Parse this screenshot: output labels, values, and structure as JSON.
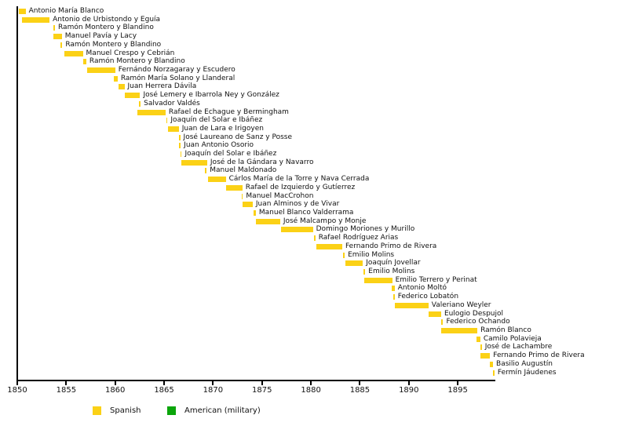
{
  "chart_data": {
    "type": "bar",
    "subtype": "gantt-timeline",
    "title": "",
    "xlabel": "",
    "ylabel": "",
    "xlim": [
      1850,
      1898.75
    ],
    "ticks": [
      1850,
      1855,
      1860,
      1865,
      1870,
      1875,
      1880,
      1885,
      1890,
      1895
    ],
    "grid": false,
    "legend_position": "bottom",
    "colors": {
      "spanish": "#FBD116",
      "american": "#0BA50B",
      "axis": "#000000",
      "text": "#111111"
    },
    "legend": [
      {
        "label": "Spanish",
        "color_key": "spanish"
      },
      {
        "label": "American (military)",
        "color_key": "american"
      }
    ],
    "bars": [
      {
        "name": "Antonio María Blanco",
        "start": 1850.15,
        "end": 1850.85,
        "group": "spanish"
      },
      {
        "name": "Antonio de Urbistondo y Eguía",
        "start": 1850.45,
        "end": 1853.3,
        "group": "spanish"
      },
      {
        "name": "Ramón Montero y Blandino",
        "start": 1853.65,
        "end": 1853.85,
        "group": "spanish"
      },
      {
        "name": "Manuel Pavía y Lacy",
        "start": 1853.7,
        "end": 1854.55,
        "group": "spanish"
      },
      {
        "name": "Ramón Montero y Blandino",
        "start": 1854.45,
        "end": 1854.6,
        "group": "spanish"
      },
      {
        "name": "Manuel Crespo y Cebrián",
        "start": 1854.85,
        "end": 1856.7,
        "group": "spanish"
      },
      {
        "name": "Ramón Montero y Blandino",
        "start": 1856.75,
        "end": 1857.05,
        "group": "spanish"
      },
      {
        "name": "Fernándo Norzagaray y Escudero",
        "start": 1857.1,
        "end": 1860.0,
        "group": "spanish"
      },
      {
        "name": "Ramón María Solano y Llanderal",
        "start": 1859.9,
        "end": 1860.25,
        "group": "spanish"
      },
      {
        "name": "Juan Herrera Dávila",
        "start": 1860.35,
        "end": 1860.95,
        "group": "spanish"
      },
      {
        "name": "José Lemery e Ibarrola Ney y González",
        "start": 1860.95,
        "end": 1862.55,
        "group": "spanish"
      },
      {
        "name": "Salvador Valdés",
        "start": 1862.45,
        "end": 1862.6,
        "group": "spanish"
      },
      {
        "name": "Rafael de Echague y Bermingham",
        "start": 1862.3,
        "end": 1865.15,
        "group": "spanish"
      },
      {
        "name": "Joaquín del Solar e Ibáñez",
        "start": 1865.2,
        "end": 1865.35,
        "group": "spanish"
      },
      {
        "name": "Juan de Lara e Irigoyen",
        "start": 1865.4,
        "end": 1866.5,
        "group": "spanish"
      },
      {
        "name": "José Laureano de Sanz y Posse",
        "start": 1866.5,
        "end": 1866.6,
        "group": "spanish"
      },
      {
        "name": "Juan Antonio Osorio",
        "start": 1866.55,
        "end": 1866.65,
        "group": "spanish"
      },
      {
        "name": "Joaquín del Solar e Ibáñez",
        "start": 1866.65,
        "end": 1866.8,
        "group": "spanish"
      },
      {
        "name": "José de la Gándara y Navarro",
        "start": 1866.8,
        "end": 1869.4,
        "group": "spanish"
      },
      {
        "name": "Manuel Maldonado",
        "start": 1869.15,
        "end": 1869.35,
        "group": "spanish"
      },
      {
        "name": "Cárlos María de la Torre y Nava Cerrada",
        "start": 1869.45,
        "end": 1871.3,
        "group": "spanish"
      },
      {
        "name": "Rafael de Izquierdo y Gutíerrez",
        "start": 1871.3,
        "end": 1873.0,
        "group": "spanish"
      },
      {
        "name": "Manuel MacCrohon",
        "start": 1872.9,
        "end": 1873.05,
        "group": "spanish"
      },
      {
        "name": "Juan Alminos y de Vivar",
        "start": 1873.05,
        "end": 1874.05,
        "group": "spanish"
      },
      {
        "name": "Manuel Blanco Valderrama",
        "start": 1874.1,
        "end": 1874.37,
        "group": "spanish"
      },
      {
        "name": "José Malcampo y Monje",
        "start": 1874.4,
        "end": 1876.85,
        "group": "spanish"
      },
      {
        "name": "Domingo Moriones y Murillo",
        "start": 1876.95,
        "end": 1880.2,
        "group": "spanish"
      },
      {
        "name": "Rafael Rodríguez Arias",
        "start": 1880.3,
        "end": 1880.45,
        "group": "spanish"
      },
      {
        "name": "Fernando Primo de Rivera",
        "start": 1880.55,
        "end": 1883.2,
        "group": "spanish"
      },
      {
        "name": "Emilio Molins",
        "start": 1883.3,
        "end": 1883.45,
        "group": "spanish"
      },
      {
        "name": "Joaquín Jovellar",
        "start": 1883.55,
        "end": 1885.3,
        "group": "spanish"
      },
      {
        "name": "Emilio Molins",
        "start": 1885.4,
        "end": 1885.55,
        "group": "spanish"
      },
      {
        "name": "Emilio Terrero y Perinat",
        "start": 1885.45,
        "end": 1888.3,
        "group": "spanish"
      },
      {
        "name": "Antonio Moltó",
        "start": 1888.25,
        "end": 1888.55,
        "group": "spanish"
      },
      {
        "name": "Federico Lobatón",
        "start": 1888.4,
        "end": 1888.55,
        "group": "spanish"
      },
      {
        "name": "Valeriano Weyler",
        "start": 1888.55,
        "end": 1892.0,
        "group": "spanish"
      },
      {
        "name": "Eulogio Despujol",
        "start": 1892.0,
        "end": 1893.3,
        "group": "spanish"
      },
      {
        "name": "Federico Ochando",
        "start": 1893.3,
        "end": 1893.5,
        "group": "spanish"
      },
      {
        "name": "Ramón Blanco",
        "start": 1893.3,
        "end": 1897.0,
        "group": "spanish"
      },
      {
        "name": "Camilo Polavieja",
        "start": 1896.95,
        "end": 1897.3,
        "group": "spanish"
      },
      {
        "name": "José de Lachambre",
        "start": 1897.3,
        "end": 1897.45,
        "group": "spanish"
      },
      {
        "name": "Fernando Primo de Rivera",
        "start": 1897.3,
        "end": 1898.3,
        "group": "spanish"
      },
      {
        "name": "Basilio Augustín",
        "start": 1898.3,
        "end": 1898.6,
        "group": "spanish"
      },
      {
        "name": "Fermín Jáudenes",
        "start": 1898.6,
        "end": 1898.75,
        "group": "spanish"
      }
    ]
  }
}
